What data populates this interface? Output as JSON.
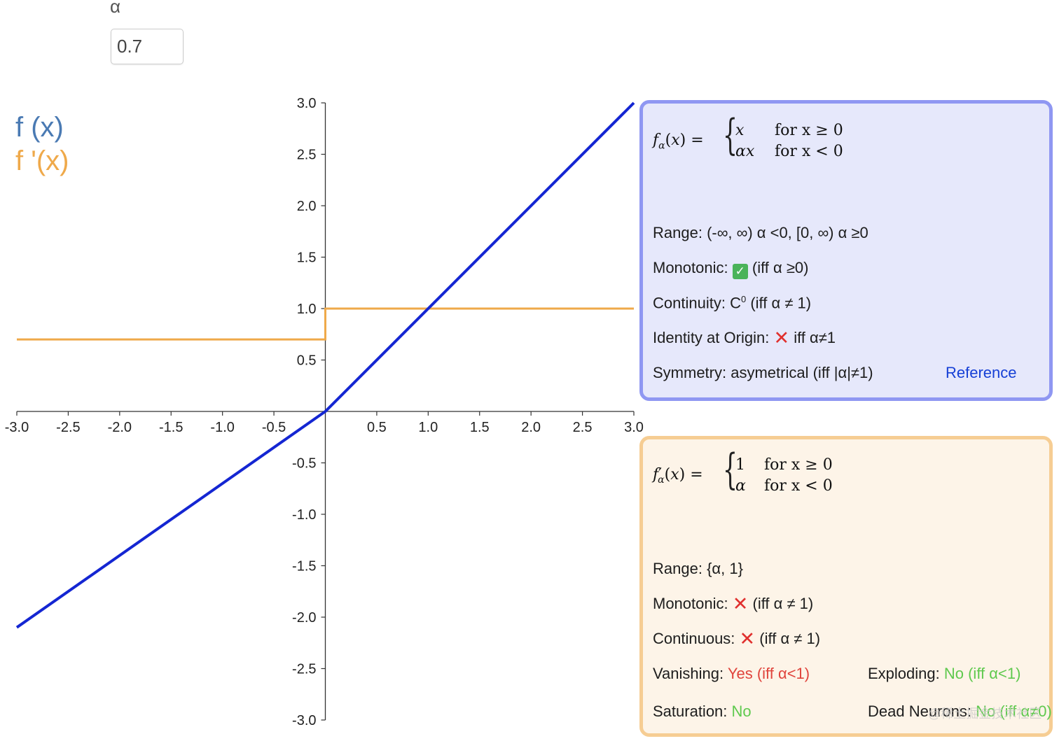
{
  "param": {
    "label": "α",
    "value": "0.7"
  },
  "legend": {
    "f": "f (x)",
    "fprime": "f '(x)"
  },
  "colors": {
    "f": "#1426d2",
    "fprime": "#efa94a",
    "legend_f": "#4a7ab3",
    "box_f_border": "#8f97f2",
    "box_fp_border": "#f6cd93"
  },
  "chart_data": {
    "type": "line",
    "xlim": [
      -3.0,
      3.0
    ],
    "ylim": [
      -3.0,
      3.0
    ],
    "x_ticks": [
      "-3.0",
      "-2.5",
      "-2.0",
      "-1.5",
      "-1.0",
      "-0.5",
      "0.5",
      "1.0",
      "1.5",
      "2.0",
      "2.5",
      "3.0"
    ],
    "y_ticks": [
      "3.0",
      "2.5",
      "2.0",
      "1.5",
      "1.0",
      "0.5",
      "-0.5",
      "-1.0",
      "-1.5",
      "-2.0",
      "-2.5",
      "-3.0"
    ],
    "series": [
      {
        "name": "f (x)",
        "x": [
          -3.0,
          0.0,
          3.0
        ],
        "y": [
          -2.1,
          0.0,
          3.0
        ]
      },
      {
        "name": "f '(x)",
        "x": [
          -3.0,
          0.0,
          0.0,
          3.0
        ],
        "y": [
          0.7,
          0.7,
          1.0,
          1.0
        ]
      }
    ],
    "grid": false
  },
  "f_box": {
    "formula": {
      "lhs_sub": "α",
      "case1_val": "x",
      "case1_cond": "for x ≥ 0",
      "case2_val": "αx",
      "case2_cond": "for x < 0"
    },
    "range_label": "Range:",
    "range_value": "(-∞, ∞) α <0, [0, ∞) α ≥0",
    "monotonic_label": "Monotonic:",
    "monotonic_icon": "check-icon",
    "monotonic_note": "(iff α ≥0)",
    "continuity_label": "Continuity:",
    "continuity_value": "C",
    "continuity_sup": "0",
    "continuity_note": "(iff α ≠ 1)",
    "identity_label": "Identity at Origin:",
    "identity_icon": "cross-icon",
    "identity_note": "iff α≠1",
    "symmetry_label": "Symmetry:",
    "symmetry_value": "asymetrical (iff |α|≠1)",
    "reference": "Reference"
  },
  "fp_box": {
    "formula": {
      "case1_val": "1",
      "case1_cond": "for x ≥ 0",
      "case2_val": "α",
      "case2_cond": "for x < 0"
    },
    "range_label": "Range:",
    "range_value": "{α, 1}",
    "monotonic_label": "Monotonic:",
    "monotonic_icon": "cross-icon",
    "monotonic_note": "(iff α ≠ 1)",
    "continuous_label": "Continuous:",
    "continuous_icon": "cross-icon",
    "continuous_note": "(iff α ≠ 1)",
    "vanishing_label": "Vanishing:",
    "vanishing_value": "Yes (iff α<1)",
    "exploding_label": "Exploding:",
    "exploding_value": "No (iff α<1)",
    "saturation_label": "Saturation:",
    "saturation_value": "No",
    "dead_label": "Dead Neurons:",
    "dead_value": "No (iff α≠0)"
  },
  "watermark": "@稀土掘金技术社区"
}
